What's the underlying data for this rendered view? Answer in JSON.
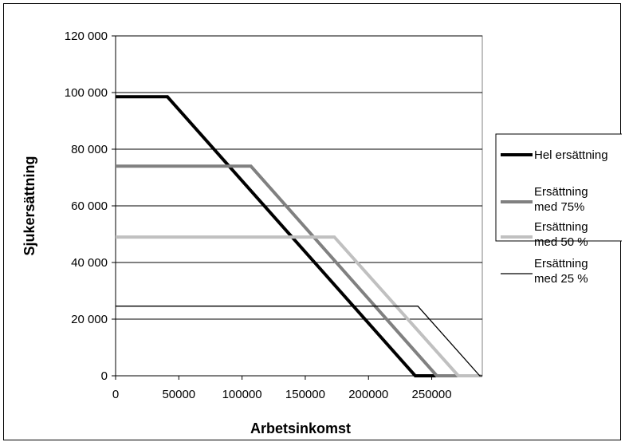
{
  "chart_data": {
    "type": "line",
    "title": "",
    "xlabel": "Arbetsinkomst",
    "ylabel": "Sjukersättning",
    "xlim": [
      0,
      290000
    ],
    "ylim": [
      0,
      120000
    ],
    "x_ticks": [
      0,
      50000,
      100000,
      150000,
      200000,
      250000
    ],
    "x_tick_labels": [
      "0",
      "50000",
      "100000",
      "150000",
      "200000",
      "250000"
    ],
    "y_ticks": [
      0,
      20000,
      40000,
      60000,
      80000,
      100000,
      120000
    ],
    "y_tick_labels": [
      "0",
      "20 000",
      "40 000",
      "60 000",
      "80 000",
      "100 000",
      "120 000"
    ],
    "grid": "horizontal",
    "legend_position": "right",
    "series": [
      {
        "name": "Hel ersättning",
        "color": "#000000",
        "x": [
          0,
          41000,
          237000,
          290000
        ],
        "y": [
          98500,
          98500,
          0,
          0
        ]
      },
      {
        "name": "Ersättning med 75%",
        "color": "#808080",
        "x": [
          0,
          107000,
          254000,
          290000
        ],
        "y": [
          74000,
          74000,
          0,
          0
        ]
      },
      {
        "name": "Ersättning med 50 %",
        "color": "#c0c0c0",
        "x": [
          0,
          173000,
          271000,
          290000
        ],
        "y": [
          49000,
          49000,
          0,
          0
        ]
      },
      {
        "name": "Ersättning med 25 %",
        "color": "#000000",
        "x": [
          0,
          239000,
          288000,
          290000
        ],
        "y": [
          24600,
          24600,
          0,
          0
        ]
      }
    ]
  }
}
